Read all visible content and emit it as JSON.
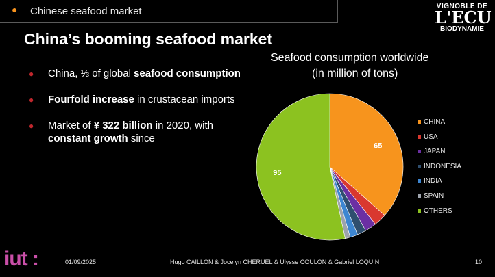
{
  "header": {
    "section_label": "Chinese seafood market"
  },
  "logo": {
    "line1": "VIGNOBLE DE",
    "line2": "L'ECU",
    "line3": "BIODYNAMIE"
  },
  "slide": {
    "title": "China’s booming seafood market"
  },
  "bullets": [
    {
      "pre": "China, ⅓ of global ",
      "bold": "seafood consumption",
      "post": ""
    },
    {
      "pre": "",
      "bold": "Fourfold increase",
      "post": " in crustacean imports"
    },
    {
      "pre": "Market of ",
      "bold": "¥ 322 billion",
      "post": " in 2020, with ",
      "bold2": "constant growth",
      "post2": " since"
    }
  ],
  "chart_data": {
    "type": "pie",
    "title": "Seafood consumption worldwide",
    "subtitle": "(in million of tons)",
    "categories": [
      "CHINA",
      "USA",
      "JAPAN",
      "INDONESIA",
      "INDIA",
      "SPAIN",
      "OTHERS"
    ],
    "values": [
      65,
      5,
      4.5,
      3.5,
      3,
      2,
      95
    ],
    "data_labels": [
      "65",
      "",
      "",
      "",
      "",
      "",
      "95"
    ],
    "colors": [
      "#f7941d",
      "#d9382f",
      "#6b2fa3",
      "#2f4f6f",
      "#3d86d1",
      "#9ea4ad",
      "#8cc220"
    ],
    "legend_position": "right"
  },
  "footer": {
    "logo_text": "iut :",
    "date": "01/09/2025",
    "authors": "Hugo CAILLON & Jocelyn CHERUEL & Ulysse COULON & Gabriel LOQUIN",
    "page": "10"
  }
}
